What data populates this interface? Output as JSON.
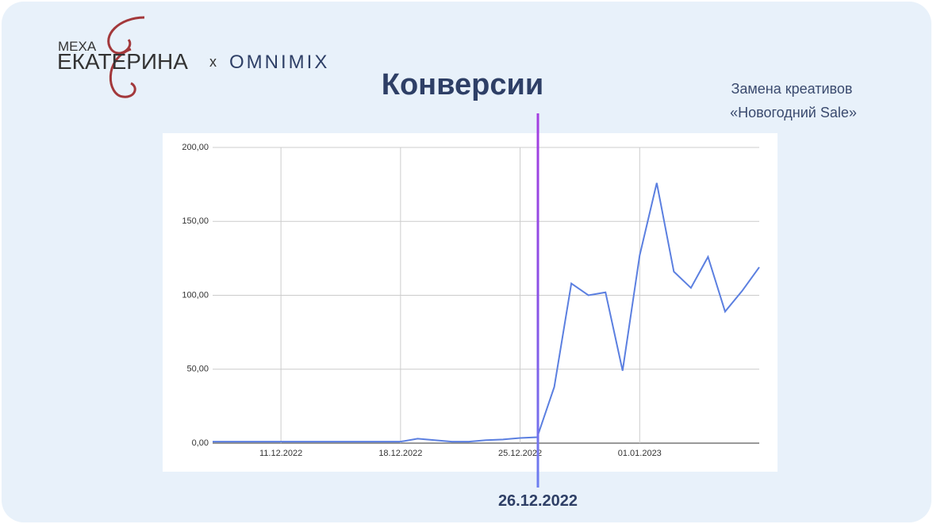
{
  "logo": {
    "top": "МЕХА",
    "main": "ЕКАТЕРИНА",
    "times": "x",
    "partner": "OMNIMIX"
  },
  "chart_data": {
    "type": "line",
    "title": "Конверсии",
    "annotation": {
      "lines": [
        "Замена креативов",
        "«Новогодний Sale»"
      ],
      "date": "26.12.2022"
    },
    "categories": [
      null,
      null,
      null,
      null,
      "11.12.2022",
      null,
      null,
      null,
      null,
      null,
      null,
      "18.12.2022",
      null,
      null,
      null,
      null,
      null,
      null,
      "25.12.2022",
      null,
      null,
      null,
      null,
      null,
      null,
      "01.01.2023",
      null,
      null,
      null,
      null,
      null,
      null,
      null
    ],
    "series": [
      {
        "name": "Конверсии",
        "color": "#5b7fe0",
        "values": [
          1,
          1,
          1,
          1,
          1,
          1,
          1,
          1,
          1,
          1,
          1,
          1,
          3,
          2,
          1,
          1,
          2,
          2.5,
          3.5,
          4,
          38,
          108,
          100,
          102,
          49,
          127,
          176,
          116,
          105,
          126,
          89,
          103,
          119
        ]
      }
    ],
    "ylim": [
      0,
      200
    ],
    "yticks": [
      {
        "value": 0,
        "label": "0,00"
      },
      {
        "value": 50,
        "label": "50,00"
      },
      {
        "value": 100,
        "label": "100,00"
      },
      {
        "value": 150,
        "label": "150,00"
      },
      {
        "value": 200,
        "label": "200,00"
      }
    ],
    "grid": true
  }
}
